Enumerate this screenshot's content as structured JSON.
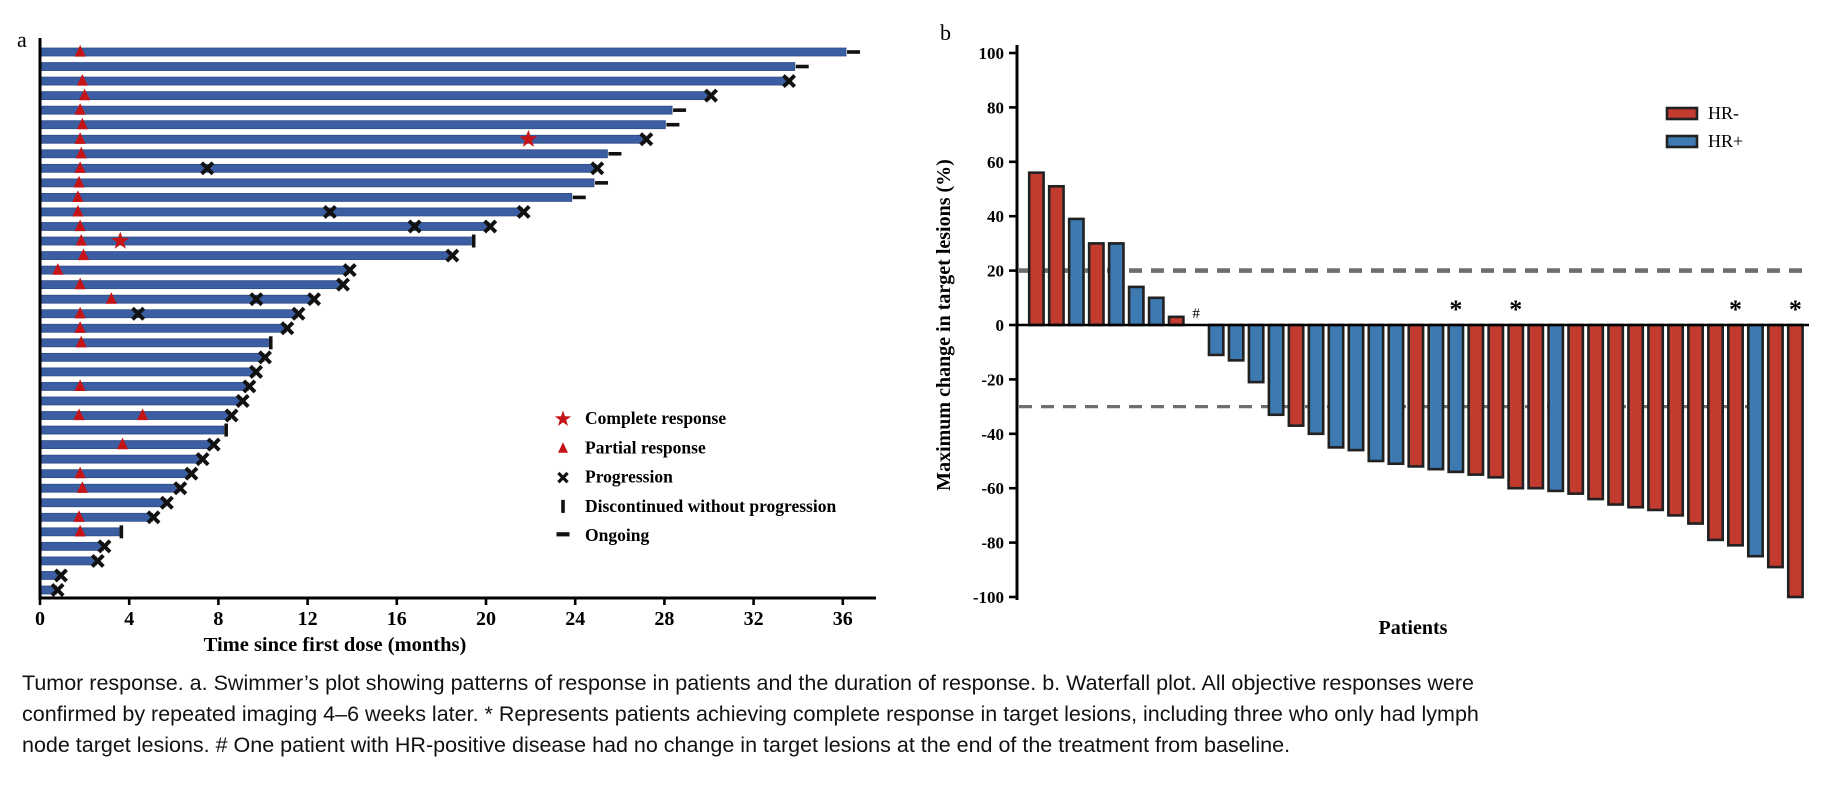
{
  "colors": {
    "swimmer_bar": "#3b5ea2",
    "swimmer_bar_edge": "#2e4d88",
    "response_red": "#c41418",
    "marker_black": "#111111",
    "waterfall_red": "#c23b2e",
    "waterfall_blue": "#3e7ab2",
    "waterfall_outline": "#212121",
    "ref_dash_gray": "#6e6e6e",
    "axis_black": "#000000"
  },
  "caption": "Tumor response. a. Swimmer’s plot showing patterns of response in patients and the duration of response. b. Waterfall plot. All objective responses were confirmed by repeated imaging 4–6 weeks later. * Represents patients achieving complete response in target lesions, including three who only had lymph node target lesions. # One patient with HR-positive disease had no change in target lesions at the end of the treatment from baseline.",
  "chart_data": [
    {
      "id": "swimmer",
      "type": "bar",
      "orientation": "horizontal",
      "panel_label": "a",
      "xlabel": "Time since first dose (months)",
      "x_ticks": [
        0,
        4,
        8,
        12,
        16,
        20,
        24,
        28,
        32,
        36
      ],
      "xlim": [
        0,
        37.5
      ],
      "grid": false,
      "legend_position": "lower-right-inside",
      "legend": [
        {
          "symbol": "star",
          "label": "Complete response"
        },
        {
          "symbol": "triangle",
          "label": "Partial response"
        },
        {
          "symbol": "cross",
          "label": "Progression"
        },
        {
          "symbol": "vbar",
          "label": "Discontinued without progression"
        },
        {
          "symbol": "dash",
          "label": "Ongoing"
        }
      ],
      "marker_meanings": {
        "star": "Complete response",
        "triangle": "Partial response",
        "cross": "Progression",
        "vbar": "Discontinued without progression",
        "dash": "Ongoing"
      },
      "patients": [
        {
          "duration": 36.1,
          "end": "ongoing",
          "markers": [
            {
              "type": "triangle",
              "month": 1.8
            }
          ]
        },
        {
          "duration": 33.8,
          "end": "ongoing",
          "markers": []
        },
        {
          "duration": 33.5,
          "end": "progression",
          "markers": [
            {
              "type": "triangle",
              "month": 1.9
            }
          ]
        },
        {
          "duration": 30.0,
          "end": "progression",
          "markers": [
            {
              "type": "triangle",
              "month": 2.0
            }
          ]
        },
        {
          "duration": 28.3,
          "end": "ongoing",
          "markers": [
            {
              "type": "triangle",
              "month": 1.8
            }
          ]
        },
        {
          "duration": 28.0,
          "end": "ongoing",
          "markers": [
            {
              "type": "triangle",
              "month": 1.9
            }
          ]
        },
        {
          "duration": 27.1,
          "end": "progression",
          "markers": [
            {
              "type": "triangle",
              "month": 1.8
            },
            {
              "type": "star",
              "month": 21.9
            }
          ]
        },
        {
          "duration": 25.4,
          "end": "ongoing",
          "markers": [
            {
              "type": "triangle",
              "month": 1.85
            }
          ]
        },
        {
          "duration": 24.9,
          "end": "progression",
          "markers": [
            {
              "type": "triangle",
              "month": 1.8
            },
            {
              "type": "cross",
              "month": 7.5
            }
          ]
        },
        {
          "duration": 24.8,
          "end": "ongoing",
          "markers": [
            {
              "type": "triangle",
              "month": 1.75
            }
          ]
        },
        {
          "duration": 23.8,
          "end": "ongoing",
          "markers": [
            {
              "type": "triangle",
              "month": 1.7
            }
          ]
        },
        {
          "duration": 21.6,
          "end": "progression",
          "markers": [
            {
              "type": "triangle",
              "month": 1.7
            },
            {
              "type": "cross",
              "month": 13.0
            }
          ]
        },
        {
          "duration": 20.1,
          "end": "progression",
          "markers": [
            {
              "type": "triangle",
              "month": 1.8
            },
            {
              "type": "cross",
              "month": 16.8
            }
          ]
        },
        {
          "duration": 19.3,
          "end": "discontinued",
          "markers": [
            {
              "type": "triangle",
              "month": 1.85
            },
            {
              "type": "star",
              "month": 3.6
            }
          ]
        },
        {
          "duration": 18.4,
          "end": "progression",
          "markers": [
            {
              "type": "triangle",
              "month": 1.95
            }
          ]
        },
        {
          "duration": 13.8,
          "end": "progression",
          "markers": [
            {
              "type": "triangle",
              "month": 0.8
            }
          ]
        },
        {
          "duration": 13.5,
          "end": "progression",
          "markers": [
            {
              "type": "triangle",
              "month": 1.8
            }
          ]
        },
        {
          "duration": 12.2,
          "end": "progression",
          "markers": [
            {
              "type": "triangle",
              "month": 3.2
            },
            {
              "type": "cross",
              "month": 9.7
            }
          ]
        },
        {
          "duration": 11.5,
          "end": "progression",
          "markers": [
            {
              "type": "triangle",
              "month": 1.8
            },
            {
              "type": "cross",
              "month": 4.4
            }
          ]
        },
        {
          "duration": 11.0,
          "end": "progression",
          "markers": [
            {
              "type": "triangle",
              "month": 1.8
            }
          ]
        },
        {
          "duration": 10.2,
          "end": "discontinued",
          "markers": [
            {
              "type": "triangle",
              "month": 1.85
            }
          ]
        },
        {
          "duration": 10.0,
          "end": "progression",
          "markers": []
        },
        {
          "duration": 9.6,
          "end": "progression",
          "markers": []
        },
        {
          "duration": 9.3,
          "end": "progression",
          "markers": [
            {
              "type": "triangle",
              "month": 1.8
            }
          ]
        },
        {
          "duration": 9.0,
          "end": "progression",
          "markers": []
        },
        {
          "duration": 8.5,
          "end": "progression",
          "markers": [
            {
              "type": "triangle",
              "month": 1.75
            },
            {
              "type": "triangle",
              "month": 4.6
            }
          ]
        },
        {
          "duration": 8.2,
          "end": "discontinued",
          "markers": []
        },
        {
          "duration": 7.7,
          "end": "progression",
          "markers": [
            {
              "type": "triangle",
              "month": 3.7
            }
          ]
        },
        {
          "duration": 7.2,
          "end": "progression",
          "markers": []
        },
        {
          "duration": 6.7,
          "end": "progression",
          "markers": [
            {
              "type": "triangle",
              "month": 1.8
            }
          ]
        },
        {
          "duration": 6.2,
          "end": "progression",
          "markers": [
            {
              "type": "triangle",
              "month": 1.9
            }
          ]
        },
        {
          "duration": 5.6,
          "end": "progression",
          "markers": []
        },
        {
          "duration": 5.0,
          "end": "progression",
          "markers": [
            {
              "type": "triangle",
              "month": 1.75
            }
          ]
        },
        {
          "duration": 3.5,
          "end": "discontinued",
          "markers": [
            {
              "type": "triangle",
              "month": 1.8
            }
          ]
        },
        {
          "duration": 2.8,
          "end": "progression",
          "markers": []
        },
        {
          "duration": 2.5,
          "end": "progression",
          "markers": []
        },
        {
          "duration": 0.85,
          "end": "progression",
          "markers": []
        },
        {
          "duration": 0.7,
          "end": "progression",
          "markers": []
        }
      ]
    },
    {
      "id": "waterfall",
      "type": "bar",
      "orientation": "vertical",
      "panel_label": "b",
      "ylabel": "Maximum change in target lesions (%)",
      "xlabel": "Patients",
      "ylim": [
        -100,
        100
      ],
      "y_ticks": [
        100,
        80,
        60,
        40,
        20,
        0,
        -20,
        -40,
        -60,
        -80,
        -100
      ],
      "ref_lines": [
        {
          "y": 20,
          "style": "dashed"
        },
        {
          "y": -30,
          "style": "dashed"
        }
      ],
      "legend_position": "upper-right-inside",
      "legend": [
        {
          "swatch": "HR-",
          "color_key": "waterfall_red",
          "label": "HR-"
        },
        {
          "swatch": "HR+",
          "color_key": "waterfall_blue",
          "label": "HR+"
        }
      ],
      "flag_meanings": {
        "*": "Complete response in target lesions",
        "#": "No change in target lesions from baseline"
      },
      "patients": [
        {
          "value": 56,
          "group": "HR-",
          "flag": null
        },
        {
          "value": 51,
          "group": "HR-",
          "flag": null
        },
        {
          "value": 39,
          "group": "HR+",
          "flag": null
        },
        {
          "value": 30,
          "group": "HR-",
          "flag": null
        },
        {
          "value": 30,
          "group": "HR+",
          "flag": null
        },
        {
          "value": 14,
          "group": "HR+",
          "flag": null
        },
        {
          "value": 10,
          "group": "HR+",
          "flag": null
        },
        {
          "value": 3,
          "group": "HR-",
          "flag": null
        },
        {
          "value": 0,
          "group": "HR+",
          "flag": "#"
        },
        {
          "value": -11,
          "group": "HR+",
          "flag": null
        },
        {
          "value": -13,
          "group": "HR+",
          "flag": null
        },
        {
          "value": -21,
          "group": "HR+",
          "flag": null
        },
        {
          "value": -33,
          "group": "HR+",
          "flag": null
        },
        {
          "value": -37,
          "group": "HR-",
          "flag": null
        },
        {
          "value": -40,
          "group": "HR+",
          "flag": null
        },
        {
          "value": -45,
          "group": "HR+",
          "flag": null
        },
        {
          "value": -46,
          "group": "HR+",
          "flag": null
        },
        {
          "value": -50,
          "group": "HR+",
          "flag": null
        },
        {
          "value": -51,
          "group": "HR+",
          "flag": null
        },
        {
          "value": -52,
          "group": "HR-",
          "flag": null
        },
        {
          "value": -53,
          "group": "HR+",
          "flag": null
        },
        {
          "value": -54,
          "group": "HR+",
          "flag": "*"
        },
        {
          "value": -55,
          "group": "HR-",
          "flag": null
        },
        {
          "value": -56,
          "group": "HR-",
          "flag": null
        },
        {
          "value": -60,
          "group": "HR-",
          "flag": "*"
        },
        {
          "value": -60,
          "group": "HR-",
          "flag": null
        },
        {
          "value": -61,
          "group": "HR+",
          "flag": null
        },
        {
          "value": -62,
          "group": "HR-",
          "flag": null
        },
        {
          "value": -64,
          "group": "HR-",
          "flag": null
        },
        {
          "value": -66,
          "group": "HR-",
          "flag": null
        },
        {
          "value": -67,
          "group": "HR-",
          "flag": null
        },
        {
          "value": -68,
          "group": "HR-",
          "flag": null
        },
        {
          "value": -70,
          "group": "HR-",
          "flag": null
        },
        {
          "value": -73,
          "group": "HR-",
          "flag": null
        },
        {
          "value": -79,
          "group": "HR-",
          "flag": null
        },
        {
          "value": -81,
          "group": "HR-",
          "flag": "*"
        },
        {
          "value": -85,
          "group": "HR+",
          "flag": null
        },
        {
          "value": -89,
          "group": "HR-",
          "flag": null
        },
        {
          "value": -100,
          "group": "HR-",
          "flag": "*"
        }
      ]
    }
  ]
}
